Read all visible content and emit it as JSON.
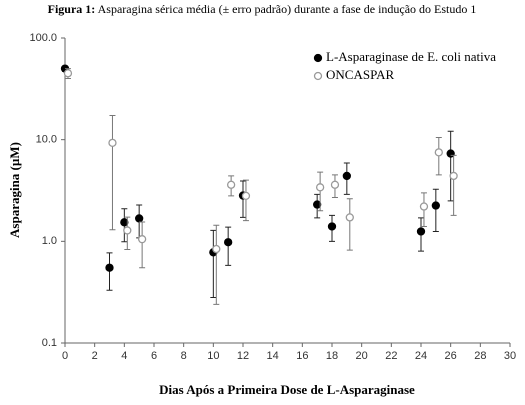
{
  "chart_data": {
    "type": "scatter",
    "title_label": "Figura 1:",
    "title": "Asparagina sérica média (± erro padrão) durante a fase de indução do Estudo 1",
    "x_label": "Dias Após a Primeira Dose de L-Asparaginase",
    "y_label": "Asparagina (µM)",
    "xlim": [
      0,
      30
    ],
    "xticks": [
      0,
      2,
      4,
      6,
      8,
      10,
      12,
      14,
      16,
      18,
      20,
      22,
      24,
      26,
      28,
      30
    ],
    "ylim": [
      0.1,
      100
    ],
    "log_y": true,
    "yticks": [
      {
        "value": 100,
        "label": "100.0"
      },
      {
        "value": 10,
        "label": "10.0"
      },
      {
        "value": 1,
        "label": "1.0"
      },
      0.1
    ],
    "legend": "top-right",
    "series": [
      {
        "name": "L-Asparaginase de E. coli nativa",
        "color": "#000000",
        "filled": true,
        "x": [
          0,
          3,
          4,
          5,
          10,
          11,
          12,
          17,
          18,
          19,
          24,
          25,
          26
        ],
        "values": [
          50,
          0.55,
          1.54,
          1.68,
          0.78,
          0.98,
          2.82,
          2.3,
          1.4,
          4.4,
          1.25,
          2.25,
          7.3
        ],
        "errors": [
          3,
          0.22,
          0.55,
          0.6,
          0.5,
          0.4,
          1.1,
          0.6,
          0.4,
          1.5,
          0.45,
          1.0,
          4.8
        ]
      },
      {
        "name": "ONCASPAR",
        "color": "#999999",
        "filled": false,
        "x": [
          0.2,
          3.2,
          4.2,
          5.2,
          10.2,
          11.2,
          12.2,
          17.2,
          18.2,
          19.2,
          24.2,
          25.2,
          26.2
        ],
        "values": [
          45,
          9.3,
          1.28,
          1.05,
          0.84,
          3.6,
          2.8,
          3.4,
          3.6,
          1.72,
          2.2,
          7.5,
          4.4
        ],
        "errors": [
          5,
          8,
          0.45,
          0.5,
          0.6,
          0.8,
          1.2,
          1.4,
          0.9,
          0.9,
          0.8,
          3,
          2.6
        ]
      }
    ]
  }
}
